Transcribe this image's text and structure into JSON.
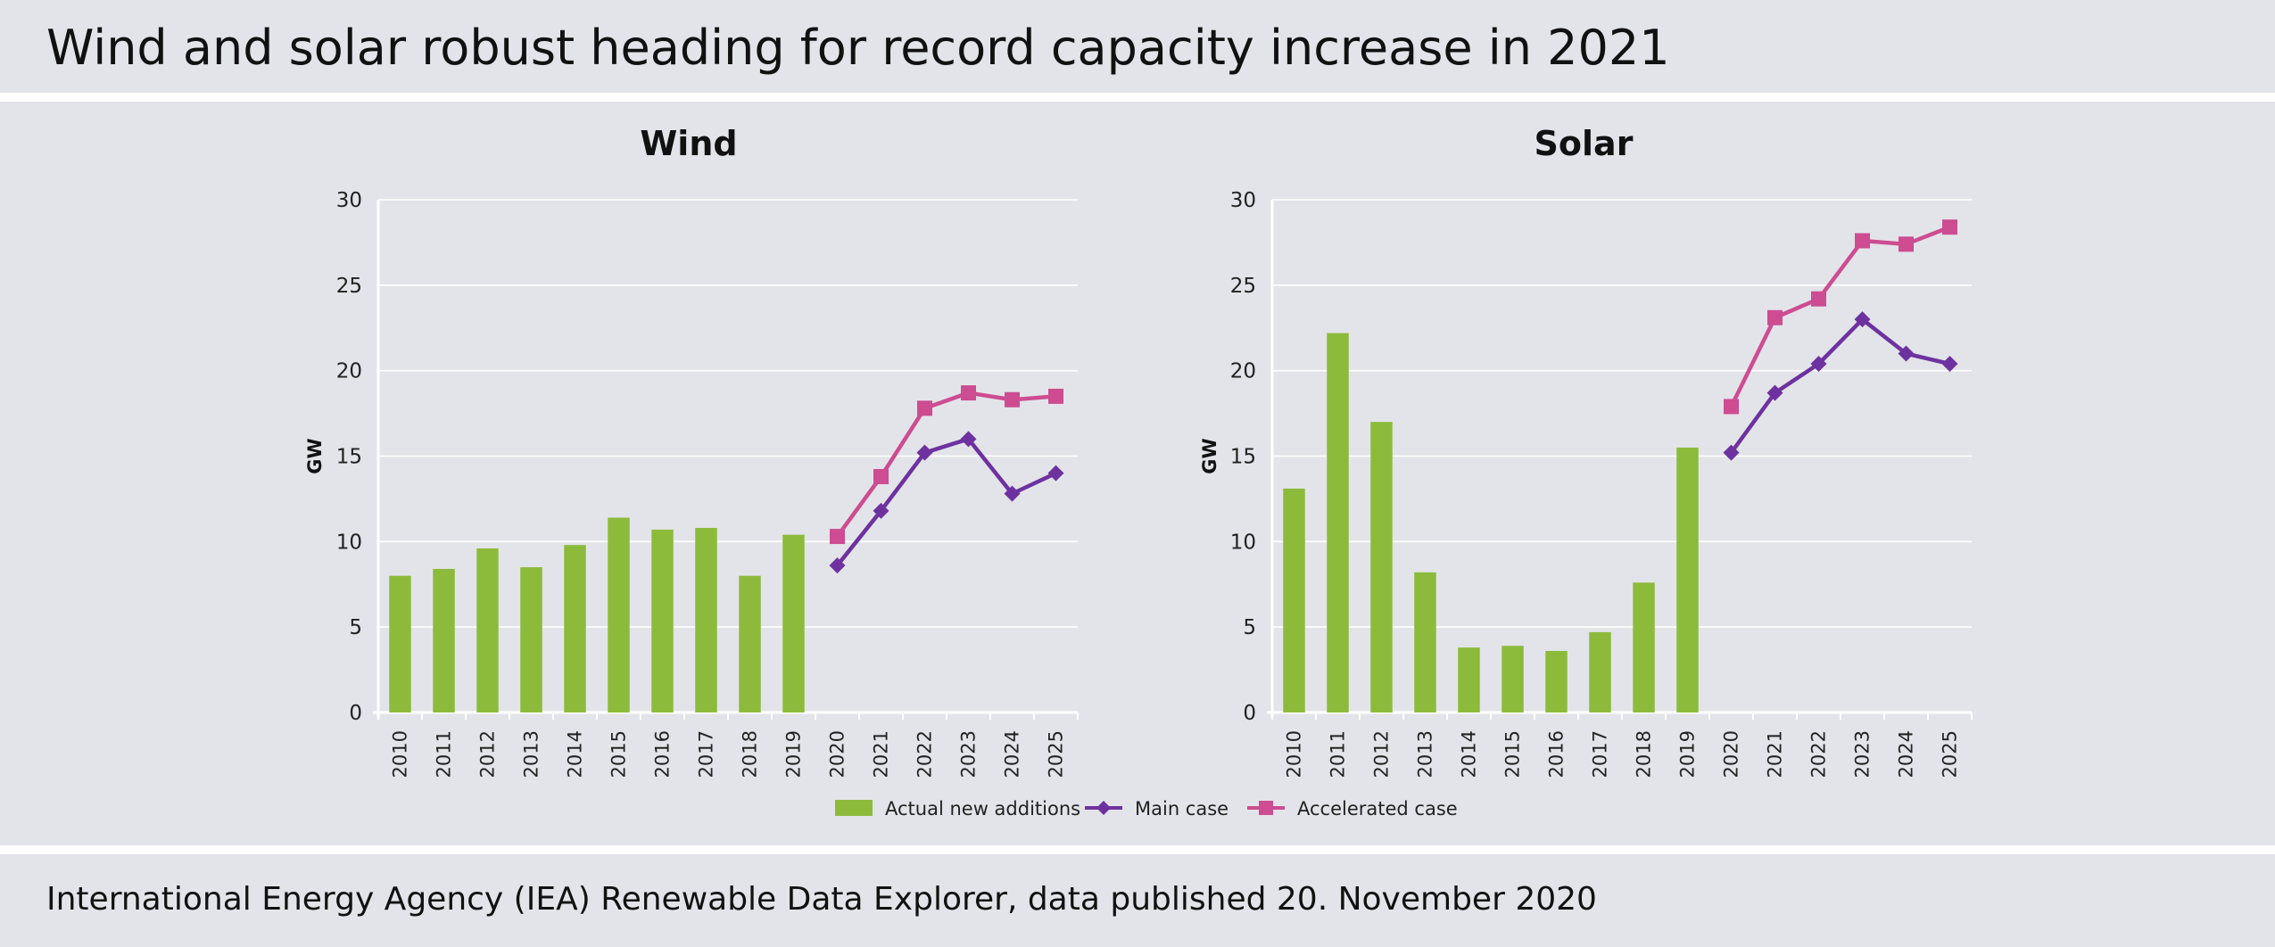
{
  "header": {
    "title": "Wind and solar robust heading for record capacity increase in 2021"
  },
  "footer": {
    "source": "International Energy Agency (IEA) Renewable Data Explorer, data published 20. November 2020"
  },
  "colors": {
    "actual": "#8cbb3c",
    "main": "#6e32a0",
    "accelerated": "#cd4c92",
    "grid": "#ffffff",
    "axis": "#ffffff",
    "band": "#e3e4e9"
  },
  "chart_data": [
    {
      "type": "bar",
      "title": "Wind",
      "ylabel": "GW",
      "xlabel": "",
      "ylim": [
        0,
        30
      ],
      "yticks": [
        0,
        5,
        10,
        15,
        20,
        25,
        30
      ],
      "categories": [
        "2010",
        "2011",
        "2012",
        "2013",
        "2014",
        "2015",
        "2016",
        "2017",
        "2018",
        "2019",
        "2020",
        "2021",
        "2022",
        "2023",
        "2024",
        "2025"
      ],
      "series": [
        {
          "name": "Actual new additions",
          "kind": "bar",
          "values": [
            8.0,
            8.4,
            9.6,
            8.5,
            9.8,
            11.4,
            10.7,
            10.8,
            8.0,
            10.4,
            null,
            null,
            null,
            null,
            null,
            null
          ]
        },
        {
          "name": "Main case",
          "kind": "line",
          "marker": "diamond",
          "values": [
            null,
            null,
            null,
            null,
            null,
            null,
            null,
            null,
            null,
            null,
            8.6,
            11.8,
            15.2,
            16.0,
            12.8,
            14.0
          ]
        },
        {
          "name": "Accelerated case",
          "kind": "line",
          "marker": "square",
          "values": [
            null,
            null,
            null,
            null,
            null,
            null,
            null,
            null,
            null,
            null,
            10.3,
            13.8,
            17.8,
            18.7,
            18.3,
            18.5
          ]
        }
      ],
      "grid": true,
      "legend": "bottom-center"
    },
    {
      "type": "bar",
      "title": "Solar",
      "ylabel": "GW",
      "xlabel": "",
      "ylim": [
        0,
        30
      ],
      "yticks": [
        0,
        5,
        10,
        15,
        20,
        25,
        30
      ],
      "categories": [
        "2010",
        "2011",
        "2012",
        "2013",
        "2014",
        "2015",
        "2016",
        "2017",
        "2018",
        "2019",
        "2020",
        "2021",
        "2022",
        "2023",
        "2024",
        "2025"
      ],
      "series": [
        {
          "name": "Actual new additions",
          "kind": "bar",
          "values": [
            13.1,
            22.2,
            17.0,
            8.2,
            3.8,
            3.9,
            3.6,
            4.7,
            7.6,
            15.5,
            null,
            null,
            null,
            null,
            null,
            null
          ]
        },
        {
          "name": "Main case",
          "kind": "line",
          "marker": "diamond",
          "values": [
            null,
            null,
            null,
            null,
            null,
            null,
            null,
            null,
            null,
            null,
            15.2,
            18.7,
            20.4,
            23.0,
            21.0,
            20.4
          ]
        },
        {
          "name": "Accelerated case",
          "kind": "line",
          "marker": "square",
          "values": [
            null,
            null,
            null,
            null,
            null,
            null,
            null,
            null,
            null,
            null,
            17.9,
            23.1,
            24.2,
            27.6,
            27.4,
            28.4
          ]
        }
      ],
      "grid": true,
      "legend": "bottom-center"
    }
  ],
  "legend": {
    "items": [
      {
        "label": "Actual new additions",
        "kind": "bar",
        "color": "#8cbb3c"
      },
      {
        "label": "Main case",
        "kind": "line-diamond",
        "color": "#6e32a0"
      },
      {
        "label": "Accelerated case",
        "kind": "line-square",
        "color": "#cd4c92"
      }
    ]
  }
}
